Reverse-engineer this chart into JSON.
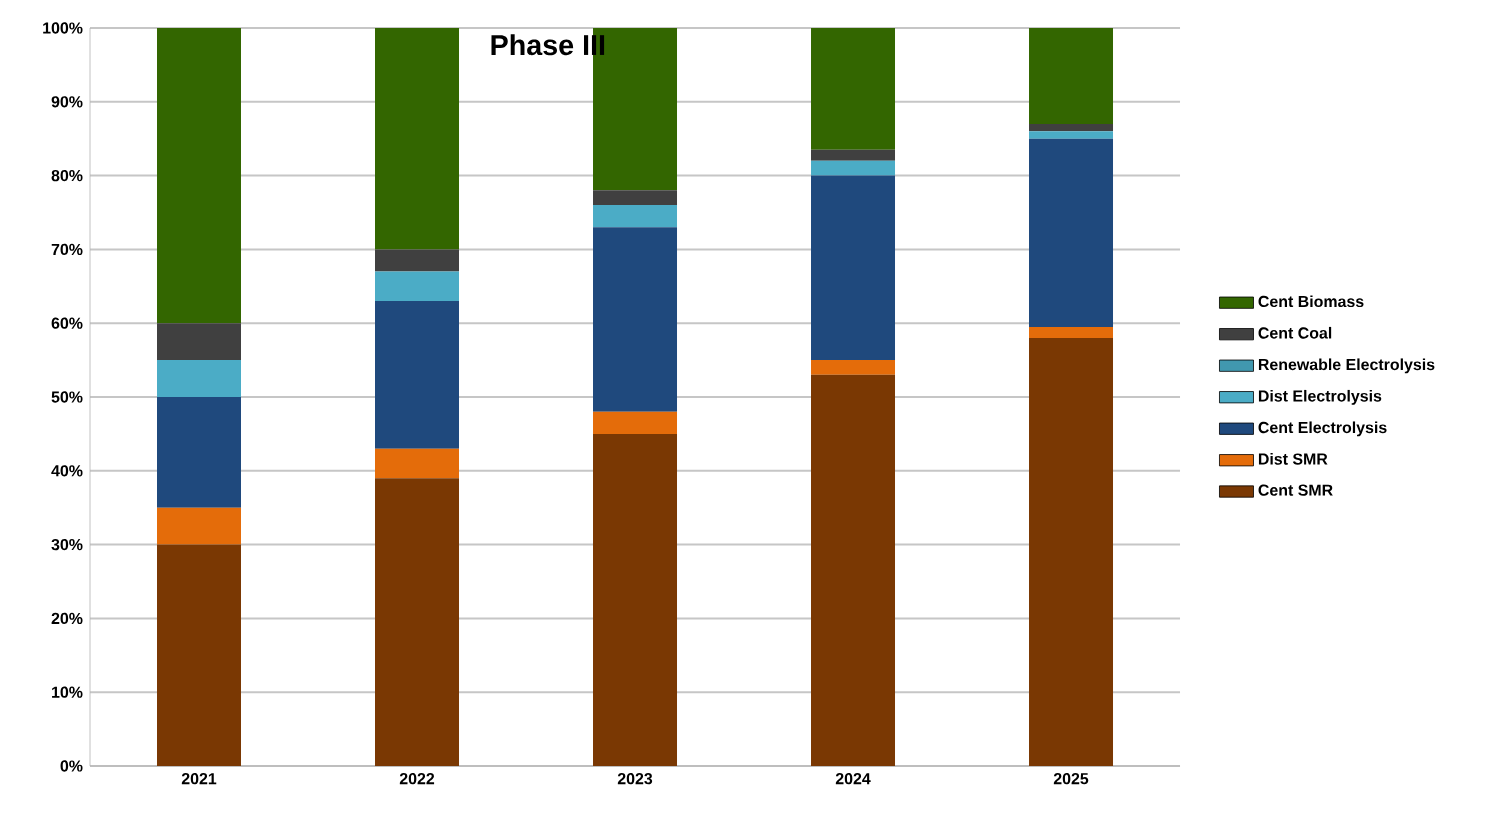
{
  "chart_data": {
    "type": "bar",
    "title": "Phase III",
    "stacked": true,
    "categories": [
      "2021",
      "2022",
      "2023",
      "2024",
      "2025"
    ],
    "series": [
      {
        "name": "Cent SMR",
        "color": "#7a3803",
        "values": [
          30,
          39,
          45,
          53,
          58
        ]
      },
      {
        "name": "Dist SMR",
        "color": "#e46c0a",
        "values": [
          5,
          4,
          3,
          2,
          1.5
        ]
      },
      {
        "name": "Cent Electrolysis",
        "color": "#1f497d",
        "values": [
          15,
          20,
          25,
          25,
          25.5
        ]
      },
      {
        "name": "Dist Electrolysis",
        "color": "#4bacc6",
        "values": [
          5,
          4,
          3,
          2,
          1
        ]
      },
      {
        "name": "Renewable Electrolysis",
        "color": "#4198af",
        "values": [
          0,
          0,
          0,
          0,
          0
        ]
      },
      {
        "name": "Cent Coal",
        "color": "#404040",
        "values": [
          5,
          3,
          2,
          1.5,
          1
        ]
      },
      {
        "name": "Cent Biomass",
        "color": "#336600",
        "values": [
          40,
          30,
          22,
          16.5,
          13
        ]
      }
    ],
    "ylim": [
      0,
      100
    ],
    "yticks": [
      {
        "value": 0,
        "label": "0%"
      },
      {
        "value": 10,
        "label": "10%"
      },
      {
        "value": 20,
        "label": "20%"
      },
      {
        "value": 30,
        "label": "30%"
      },
      {
        "value": 40,
        "label": "40%"
      },
      {
        "value": 50,
        "label": "50%"
      },
      {
        "value": 60,
        "label": "60%"
      },
      {
        "value": 70,
        "label": "70%"
      },
      {
        "value": 80,
        "label": "80%"
      },
      {
        "value": 90,
        "label": "90%"
      },
      {
        "value": 100,
        "label": "100%"
      }
    ],
    "grid": "y",
    "legend": "right"
  }
}
